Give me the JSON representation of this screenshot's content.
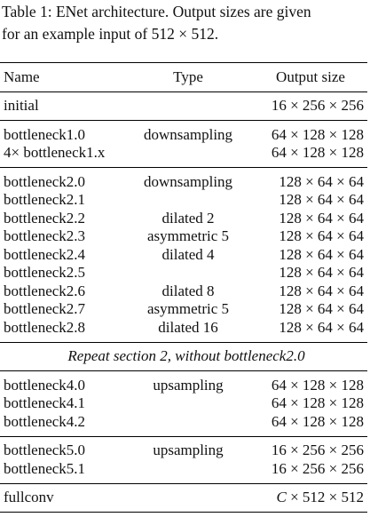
{
  "caption": [
    "Table 1: ENet architecture. Output sizes are given",
    "for an example input of 512 × 512."
  ],
  "header": {
    "name": "Name",
    "type": "Type",
    "output": "Output size"
  },
  "sections": [
    {
      "rows": [
        {
          "name": "initial",
          "output": "16 × 256 × 256"
        }
      ]
    },
    {
      "rows": [
        {
          "name": "bottleneck1.0",
          "type": "downsampling",
          "output": "64 × 128 × 128"
        },
        {
          "name": "4× bottleneck1.x",
          "output": "64 × 128 × 128"
        }
      ]
    },
    {
      "rows": [
        {
          "name": "bottleneck2.0",
          "type": "downsampling",
          "output": "128 × 64 × 64"
        },
        {
          "name": "bottleneck2.1",
          "output": "128 × 64 × 64"
        },
        {
          "name": "bottleneck2.2",
          "type": "dilated 2",
          "output": "128 × 64 × 64"
        },
        {
          "name": "bottleneck2.3",
          "type": "asymmetric 5",
          "output": "128 × 64 × 64"
        },
        {
          "name": "bottleneck2.4",
          "type": "dilated 4",
          "output": "128 × 64 × 64"
        },
        {
          "name": "bottleneck2.5",
          "output": "128 × 64 × 64"
        },
        {
          "name": "bottleneck2.6",
          "type": "dilated 8",
          "output": "128 × 64 × 64"
        },
        {
          "name": "bottleneck2.7",
          "type": "asymmetric 5",
          "output": "128 × 64 × 64"
        },
        {
          "name": "bottleneck2.8",
          "type": "dilated 16",
          "output": "128 × 64 × 64"
        }
      ]
    },
    {
      "note": "Repeat section 2, without bottleneck2.0"
    },
    {
      "rows": [
        {
          "name": "bottleneck4.0",
          "type": "upsampling",
          "output": "64 × 128 × 128"
        },
        {
          "name": "bottleneck4.1",
          "output": "64 × 128 × 128"
        },
        {
          "name": "bottleneck4.2",
          "output": "64 × 128 × 128"
        }
      ]
    },
    {
      "rows": [
        {
          "name": "bottleneck5.0",
          "type": "upsampling",
          "output": "16 × 256 × 256"
        },
        {
          "name": "bottleneck5.1",
          "output": "16 × 256 × 256"
        }
      ]
    },
    {
      "rows": [
        {
          "name": "fullconv",
          "output": "C × 512 × 512"
        }
      ]
    }
  ]
}
